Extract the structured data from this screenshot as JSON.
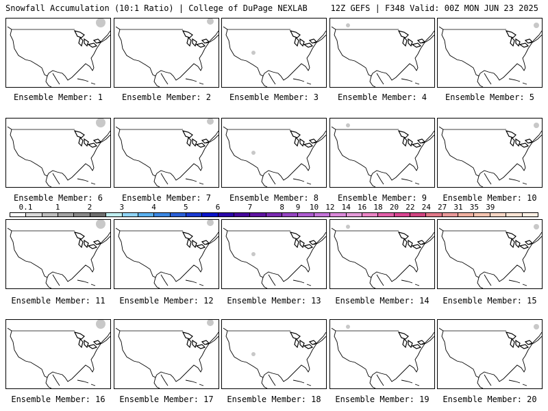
{
  "header": {
    "left_text": "Snowfall Accumulation (10:1 Ratio) | College of DuPage NEXLAB",
    "right_text": "12Z GEFS | F348 Valid: 00Z MON JUN 23 2025"
  },
  "colorbar": {
    "tick_labels": [
      "0.1",
      "1",
      "2",
      "3",
      "4",
      "5",
      "6",
      "7",
      "8",
      "9",
      "10",
      "12",
      "14",
      "16",
      "18",
      "20",
      "22",
      "24",
      "27",
      "31",
      "35",
      "39"
    ],
    "colors": [
      "#ffffff",
      "#d9d9d9",
      "#bdbdbd",
      "#a3a3a3",
      "#888888",
      "#6e6e6e",
      "#bfeef0",
      "#8fd3f5",
      "#5ab0ee",
      "#3a86e0",
      "#2a5fd6",
      "#1a3ad0",
      "#0a14c8",
      "#2a08a8",
      "#45089a",
      "#5e14a0",
      "#7a2ab0",
      "#9444c0",
      "#ad5cd0",
      "#c474d8",
      "#d988d8",
      "#e49ad8",
      "#ea84c4",
      "#e25ea8",
      "#d84490",
      "#d04480",
      "#e07888",
      "#e89898",
      "#f0b0a0",
      "#f4c4b0",
      "#f8d6c4",
      "#fbe4d4",
      "#fdf0e4"
    ],
    "tick_swatch_index": [
      1,
      3,
      5,
      7,
      9,
      11,
      13,
      15,
      17,
      18,
      19,
      20,
      21,
      22,
      23,
      24,
      25,
      26,
      27,
      28,
      29,
      30
    ]
  },
  "panels": [
    {
      "label": "Ensemble Member: 1"
    },
    {
      "label": "Ensemble Member: 2"
    },
    {
      "label": "Ensemble Member: 3"
    },
    {
      "label": "Ensemble Member: 4"
    },
    {
      "label": "Ensemble Member: 5"
    },
    {
      "label": "Ensemble Member: 6"
    },
    {
      "label": "Ensemble Member: 7"
    },
    {
      "label": "Ensemble Member: 8"
    },
    {
      "label": "Ensemble Member: 9"
    },
    {
      "label": "Ensemble Member: 10"
    },
    {
      "label": "Ensemble Member: 11"
    },
    {
      "label": "Ensemble Member: 12"
    },
    {
      "label": "Ensemble Member: 13"
    },
    {
      "label": "Ensemble Member: 14"
    },
    {
      "label": "Ensemble Member: 15"
    },
    {
      "label": "Ensemble Member: 16"
    },
    {
      "label": "Ensemble Member: 17"
    },
    {
      "label": "Ensemble Member: 18"
    },
    {
      "label": "Ensemble Member: 19"
    },
    {
      "label": "Ensemble Member: 20"
    }
  ]
}
